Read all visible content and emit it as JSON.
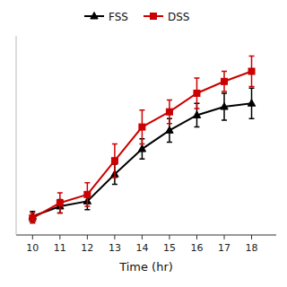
{
  "chart_data": {
    "type": "line",
    "xlabel": "Time (hr)",
    "x": [
      10,
      11,
      12,
      13,
      14,
      15,
      16,
      17,
      18
    ],
    "xlim": [
      9.4,
      18.9
    ],
    "xticks": [
      10,
      11,
      12,
      13,
      14,
      15,
      16,
      17,
      18
    ],
    "ylim": [
      -0.08,
      1.1
    ],
    "tick_labels": "x",
    "legend": "top",
    "series": [
      {
        "name": "FSS",
        "color": "#000000",
        "marker": "triangle",
        "values": [
          0.03,
          0.09,
          0.12,
          0.28,
          0.43,
          0.54,
          0.63,
          0.68,
          0.7
        ],
        "errors": [
          0.03,
          0.04,
          0.05,
          0.06,
          0.06,
          0.07,
          0.07,
          0.08,
          0.09
        ]
      },
      {
        "name": "DSS",
        "color": "#cc0000",
        "marker": "square",
        "values": [
          0.02,
          0.11,
          0.16,
          0.36,
          0.56,
          0.65,
          0.76,
          0.83,
          0.89
        ],
        "errors": [
          0.03,
          0.06,
          0.07,
          0.1,
          0.1,
          0.07,
          0.09,
          0.06,
          0.09
        ]
      }
    ]
  }
}
